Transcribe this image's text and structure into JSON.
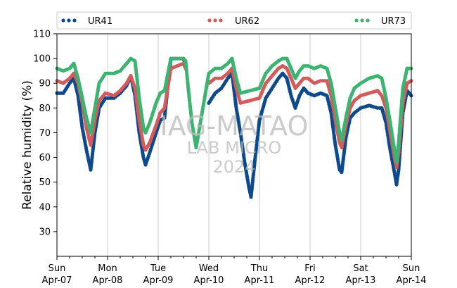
{
  "chart_data": {
    "type": "scatter",
    "title": "",
    "xlabel": "",
    "ylabel": "Relative humidity (%)",
    "ylim": [
      20,
      110
    ],
    "yticks": [
      30,
      40,
      50,
      60,
      70,
      80,
      90,
      100,
      110
    ],
    "xlim": [
      "2024-04-07 00:00",
      "2024-04-14 00:00"
    ],
    "grid": "vertical at day boundaries",
    "legend_position": "top, above plot",
    "xtick_labels": [
      {
        "day": "Sun",
        "date": "Apr-07"
      },
      {
        "day": "Mon",
        "date": "Apr-08"
      },
      {
        "day": "Tue",
        "date": "Apr-09"
      },
      {
        "day": "Wed",
        "date": "Apr-10"
      },
      {
        "day": "Thu",
        "date": "Apr-11"
      },
      {
        "day": "Fri",
        "date": "Apr-12"
      },
      {
        "day": "Sat",
        "date": "Apr-13"
      },
      {
        "day": "Sun",
        "date": "Apr-14"
      }
    ],
    "watermark": [
      "IAG-MATAO",
      "LAB MICRO",
      "2024"
    ],
    "series": [
      {
        "name": "UR41",
        "color": "#0d4a8c",
        "points": [
          [
            "2024-04-07 00:00",
            86
          ],
          [
            "2024-04-07 03:00",
            86
          ],
          [
            "2024-04-07 06:00",
            90
          ],
          [
            "2024-04-07 08:00",
            92
          ],
          [
            "2024-04-07 10:00",
            85
          ],
          [
            "2024-04-07 12:00",
            72
          ],
          [
            "2024-04-07 14:00",
            63
          ],
          [
            "2024-04-07 16:00",
            55
          ],
          [
            "2024-04-07 18:00",
            70
          ],
          [
            "2024-04-07 20:00",
            80
          ],
          [
            "2024-04-07 23:00",
            84
          ],
          [
            "2024-04-08 03:00",
            84
          ],
          [
            "2024-04-08 06:00",
            86
          ],
          [
            "2024-04-08 09:00",
            89
          ],
          [
            "2024-04-08 11:00",
            93
          ],
          [
            "2024-04-08 13:00",
            85
          ],
          [
            "2024-04-08 15:00",
            70
          ],
          [
            "2024-04-08 17:00",
            60
          ],
          [
            "2024-04-08 18:00",
            57
          ],
          [
            "2024-04-08 20:00",
            62
          ],
          [
            "2024-04-08 23:00",
            70
          ],
          [
            "2024-04-09 01:00",
            75
          ],
          [
            "2024-04-09 03:00",
            76
          ],
          [
            "2024-04-09 06:00",
            100
          ],
          [
            "2024-04-09 09:00",
            100
          ],
          [
            "2024-04-09 12:00",
            100
          ],
          [
            "2024-04-09 13:00",
            97
          ],
          [
            "2024-04-10 00:00",
            82
          ],
          [
            "2024-04-10 03:00",
            86
          ],
          [
            "2024-04-10 06:00",
            88
          ],
          [
            "2024-04-10 09:00",
            92
          ],
          [
            "2024-04-10 11:00",
            94
          ],
          [
            "2024-04-10 13:00",
            80
          ],
          [
            "2024-04-10 15:00",
            70
          ],
          [
            "2024-04-10 17:00",
            58
          ],
          [
            "2024-04-10 19:00",
            48
          ],
          [
            "2024-04-10 20:00",
            44
          ],
          [
            "2024-04-10 22:00",
            60
          ],
          [
            "2024-04-11 00:00",
            75
          ],
          [
            "2024-04-11 03:00",
            84
          ],
          [
            "2024-04-11 06:00",
            88
          ],
          [
            "2024-04-11 09:00",
            92
          ],
          [
            "2024-04-11 11:00",
            94
          ],
          [
            "2024-04-11 13:00",
            92
          ],
          [
            "2024-04-11 15:00",
            85
          ],
          [
            "2024-04-11 17:00",
            80
          ],
          [
            "2024-04-11 19:00",
            85
          ],
          [
            "2024-04-11 21:00",
            88
          ],
          [
            "2024-04-11 23:00",
            86
          ],
          [
            "2024-04-12 02:00",
            85
          ],
          [
            "2024-04-12 05:00",
            86
          ],
          [
            "2024-04-12 08:00",
            85
          ],
          [
            "2024-04-12 10:00",
            78
          ],
          [
            "2024-04-12 12:00",
            65
          ],
          [
            "2024-04-12 14:00",
            55
          ],
          [
            "2024-04-12 15:00",
            54
          ],
          [
            "2024-04-12 17:00",
            68
          ],
          [
            "2024-04-12 19:00",
            76
          ],
          [
            "2024-04-12 21:00",
            78
          ],
          [
            "2024-04-13 00:00",
            80
          ],
          [
            "2024-04-13 04:00",
            81
          ],
          [
            "2024-04-13 08:00",
            80
          ],
          [
            "2024-04-13 10:00",
            80
          ],
          [
            "2024-04-13 12:00",
            74
          ],
          [
            "2024-04-13 14:00",
            63
          ],
          [
            "2024-04-13 16:00",
            54
          ],
          [
            "2024-04-13 17:00",
            49
          ],
          [
            "2024-04-13 18:00",
            55
          ],
          [
            "2024-04-13 20:00",
            78
          ],
          [
            "2024-04-13 22:00",
            87
          ],
          [
            "2024-04-14 00:00",
            85
          ]
        ]
      },
      {
        "name": "UR62",
        "color": "#d45b5b",
        "points": [
          [
            "2024-04-07 00:00",
            91
          ],
          [
            "2024-04-07 03:00",
            90
          ],
          [
            "2024-04-07 06:00",
            92
          ],
          [
            "2024-04-07 08:00",
            94
          ],
          [
            "2024-04-07 10:00",
            90
          ],
          [
            "2024-04-07 12:00",
            82
          ],
          [
            "2024-04-07 14:00",
            72
          ],
          [
            "2024-04-07 16:00",
            65
          ],
          [
            "2024-04-07 18:00",
            75
          ],
          [
            "2024-04-07 20:00",
            83
          ],
          [
            "2024-04-07 23:00",
            86
          ],
          [
            "2024-04-08 03:00",
            85
          ],
          [
            "2024-04-08 06:00",
            87
          ],
          [
            "2024-04-08 09:00",
            90
          ],
          [
            "2024-04-08 11:00",
            93
          ],
          [
            "2024-04-08 13:00",
            88
          ],
          [
            "2024-04-08 15:00",
            75
          ],
          [
            "2024-04-08 17:00",
            65
          ],
          [
            "2024-04-08 18:00",
            63
          ],
          [
            "2024-04-08 20:00",
            66
          ],
          [
            "2024-04-08 23:00",
            73
          ],
          [
            "2024-04-09 01:00",
            78
          ],
          [
            "2024-04-09 03:00",
            80
          ],
          [
            "2024-04-09 06:00",
            96
          ],
          [
            "2024-04-09 09:00",
            97
          ],
          [
            "2024-04-09 12:00",
            98
          ],
          [
            "2024-04-09 13:00",
            96
          ],
          [
            "2024-04-10 00:00",
            90
          ],
          [
            "2024-04-10 03:00",
            92
          ],
          [
            "2024-04-10 06:00",
            92
          ],
          [
            "2024-04-10 09:00",
            94
          ],
          [
            "2024-04-10 11:00",
            96
          ],
          [
            "2024-04-10 13:00",
            88
          ],
          [
            "2024-04-10 15:00",
            82
          ],
          [
            "2024-04-11 00:00",
            84
          ],
          [
            "2024-04-11 03:00",
            90
          ],
          [
            "2024-04-11 06:00",
            93
          ],
          [
            "2024-04-11 09:00",
            96
          ],
          [
            "2024-04-11 11:00",
            97
          ],
          [
            "2024-04-11 13:00",
            96
          ],
          [
            "2024-04-11 15:00",
            92
          ],
          [
            "2024-04-11 17:00",
            88
          ],
          [
            "2024-04-11 19:00",
            90
          ],
          [
            "2024-04-11 21:00",
            92
          ],
          [
            "2024-04-11 23:00",
            92
          ],
          [
            "2024-04-12 02:00",
            90
          ],
          [
            "2024-04-12 05:00",
            91
          ],
          [
            "2024-04-12 08:00",
            91
          ],
          [
            "2024-04-12 10:00",
            85
          ],
          [
            "2024-04-12 12:00",
            75
          ],
          [
            "2024-04-12 14:00",
            66
          ],
          [
            "2024-04-12 15:00",
            64
          ],
          [
            "2024-04-12 17:00",
            73
          ],
          [
            "2024-04-12 19:00",
            80
          ],
          [
            "2024-04-12 21:00",
            83
          ],
          [
            "2024-04-13 00:00",
            85
          ],
          [
            "2024-04-13 04:00",
            86
          ],
          [
            "2024-04-13 08:00",
            87
          ],
          [
            "2024-04-13 10:00",
            85
          ],
          [
            "2024-04-13 12:00",
            80
          ],
          [
            "2024-04-13 14:00",
            70
          ],
          [
            "2024-04-13 16:00",
            60
          ],
          [
            "2024-04-13 17:00",
            56
          ],
          [
            "2024-04-13 18:00",
            62
          ],
          [
            "2024-04-13 20:00",
            82
          ],
          [
            "2024-04-13 22:00",
            90
          ],
          [
            "2024-04-14 00:00",
            91
          ]
        ]
      },
      {
        "name": "UR73",
        "color": "#3cb371",
        "points": [
          [
            "2024-04-07 00:00",
            96
          ],
          [
            "2024-04-07 03:00",
            95
          ],
          [
            "2024-04-07 06:00",
            96
          ],
          [
            "2024-04-07 08:00",
            98
          ],
          [
            "2024-04-07 10:00",
            92
          ],
          [
            "2024-04-07 12:00",
            84
          ],
          [
            "2024-04-07 14:00",
            76
          ],
          [
            "2024-04-07 16:00",
            70
          ],
          [
            "2024-04-07 18:00",
            80
          ],
          [
            "2024-04-07 20:00",
            90
          ],
          [
            "2024-04-07 23:00",
            94
          ],
          [
            "2024-04-08 03:00",
            94
          ],
          [
            "2024-04-08 06:00",
            95
          ],
          [
            "2024-04-08 09:00",
            98
          ],
          [
            "2024-04-08 11:00",
            100
          ],
          [
            "2024-04-08 13:00",
            99
          ],
          [
            "2024-04-08 15:00",
            84
          ],
          [
            "2024-04-08 17:00",
            72
          ],
          [
            "2024-04-08 18:00",
            70
          ],
          [
            "2024-04-08 20:00",
            74
          ],
          [
            "2024-04-08 23:00",
            82
          ],
          [
            "2024-04-09 01:00",
            86
          ],
          [
            "2024-04-09 03:00",
            87
          ],
          [
            "2024-04-09 06:00",
            100
          ],
          [
            "2024-04-09 09:00",
            100
          ],
          [
            "2024-04-09 12:00",
            100
          ],
          [
            "2024-04-09 13:00",
            99
          ],
          [
            "2024-04-09 14:00",
            90
          ],
          [
            "2024-04-09 16:00",
            74
          ],
          [
            "2024-04-09 18:00",
            64
          ],
          [
            "2024-04-10 00:00",
            94
          ],
          [
            "2024-04-10 03:00",
            96
          ],
          [
            "2024-04-10 06:00",
            96
          ],
          [
            "2024-04-10 09:00",
            98
          ],
          [
            "2024-04-10 11:00",
            100
          ],
          [
            "2024-04-10 13:00",
            92
          ],
          [
            "2024-04-10 15:00",
            86
          ],
          [
            "2024-04-11 00:00",
            88
          ],
          [
            "2024-04-11 03:00",
            94
          ],
          [
            "2024-04-11 06:00",
            97
          ],
          [
            "2024-04-11 09:00",
            99
          ],
          [
            "2024-04-11 11:00",
            100
          ],
          [
            "2024-04-11 13:00",
            100
          ],
          [
            "2024-04-11 15:00",
            96
          ],
          [
            "2024-04-11 17:00",
            92
          ],
          [
            "2024-04-11 19:00",
            95
          ],
          [
            "2024-04-11 21:00",
            97
          ],
          [
            "2024-04-11 23:00",
            97
          ],
          [
            "2024-04-12 02:00",
            96
          ],
          [
            "2024-04-12 05:00",
            97
          ],
          [
            "2024-04-12 08:00",
            96
          ],
          [
            "2024-04-12 10:00",
            90
          ],
          [
            "2024-04-12 12:00",
            80
          ],
          [
            "2024-04-12 14:00",
            70
          ],
          [
            "2024-04-12 15:00",
            67
          ],
          [
            "2024-04-12 17:00",
            76
          ],
          [
            "2024-04-12 19:00",
            84
          ],
          [
            "2024-04-12 21:00",
            88
          ],
          [
            "2024-04-13 00:00",
            90
          ],
          [
            "2024-04-13 04:00",
            92
          ],
          [
            "2024-04-13 08:00",
            93
          ],
          [
            "2024-04-13 10:00",
            92
          ],
          [
            "2024-04-13 12:00",
            84
          ],
          [
            "2024-04-13 14:00",
            74
          ],
          [
            "2024-04-13 16:00",
            63
          ],
          [
            "2024-04-13 17:00",
            58
          ],
          [
            "2024-04-13 18:00",
            66
          ],
          [
            "2024-04-13 20:00",
            88
          ],
          [
            "2024-04-13 22:00",
            96
          ],
          [
            "2024-04-14 00:00",
            96
          ]
        ]
      }
    ]
  }
}
